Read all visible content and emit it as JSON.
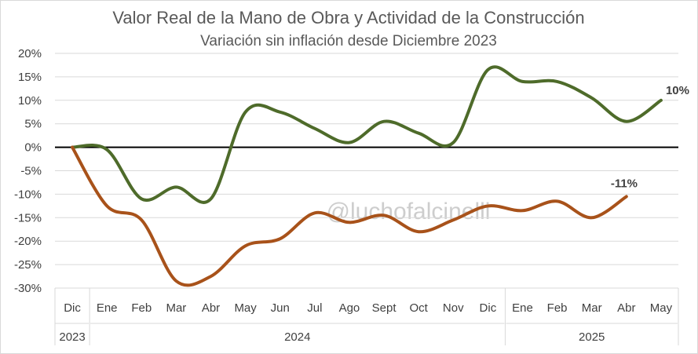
{
  "chart_data": {
    "type": "line",
    "title": "Valor Real de la Mano de Obra y Actividad de la Construcción",
    "subtitle": "Variación sin inflación desde Diciembre 2023",
    "watermark": "@luchofalcinelli",
    "months": [
      "Dic",
      "Ene",
      "Feb",
      "Mar",
      "Abr",
      "May",
      "Jun",
      "Jul",
      "Ago",
      "Sept",
      "Oct",
      "Nov",
      "Dic",
      "Ene",
      "Feb",
      "Mar",
      "Abr",
      "May"
    ],
    "years": [
      {
        "label": "2023",
        "start": 0,
        "end": 0
      },
      {
        "label": "2024",
        "start": 1,
        "end": 12
      },
      {
        "label": "2025",
        "start": 13,
        "end": 17
      }
    ],
    "y_ticks": [
      "20%",
      "15%",
      "10%",
      "5%",
      "0%",
      "-5%",
      "-10%",
      "-15%",
      "-20%",
      "-25%",
      "-30%"
    ],
    "ylim": [
      -30,
      20
    ],
    "grid": true,
    "series": [
      {
        "color": "#4e6b2a",
        "values": [
          0,
          -0.5,
          -11,
          -8.5,
          -11,
          7.5,
          7.5,
          4,
          1,
          5.5,
          3,
          1,
          16.5,
          14,
          14,
          10.5,
          5.5,
          10
        ],
        "end_label": "10%"
      },
      {
        "color": "#a8521a",
        "values": [
          0,
          -12.5,
          -15.5,
          -28.5,
          -27.5,
          -21,
          -19.5,
          -14,
          -16,
          -14.5,
          -18,
          -15.5,
          -12.5,
          -13.5,
          -11.5,
          -15,
          -10.5,
          null
        ],
        "end_label": "-11%"
      }
    ]
  }
}
